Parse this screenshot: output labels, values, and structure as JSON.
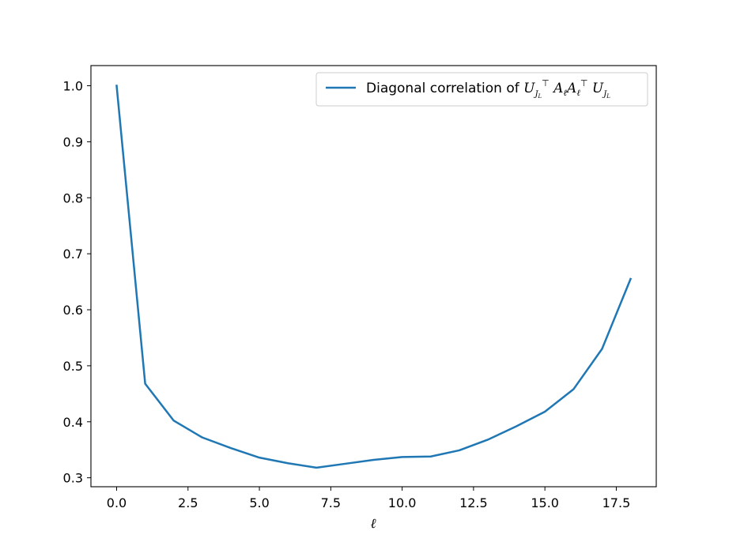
{
  "chart_data": {
    "type": "line",
    "xlabel": "ℓ",
    "ylabel": "",
    "title": "",
    "xlim": [
      -0.9,
      18.9
    ],
    "ylim": [
      0.284,
      1.036
    ],
    "xticks": [
      0.0,
      2.5,
      5.0,
      7.5,
      10.0,
      12.5,
      15.0,
      17.5
    ],
    "xtick_labels": [
      "0.0",
      "2.5",
      "5.0",
      "7.5",
      "10.0",
      "12.5",
      "15.0",
      "17.5"
    ],
    "yticks": [
      0.3,
      0.4,
      0.5,
      0.6,
      0.7,
      0.8,
      0.9,
      1.0
    ],
    "ytick_labels": [
      "0.3",
      "0.4",
      "0.5",
      "0.6",
      "0.7",
      "0.8",
      "0.9",
      "1.0"
    ],
    "grid": false,
    "legend_position": "top-right",
    "series": [
      {
        "name": "Diagonal correlation of U_{J_L}^⊤ A_ℓ A_ℓ^⊤ U_{J_L}",
        "color": "#1f77b4",
        "x": [
          0,
          1,
          2,
          3,
          4,
          5,
          6,
          7,
          8,
          9,
          10,
          11,
          12,
          13,
          14,
          15,
          16,
          17,
          18
        ],
        "y": [
          1.0,
          0.468,
          0.402,
          0.372,
          0.353,
          0.336,
          0.326,
          0.318,
          0.325,
          0.332,
          0.337,
          0.338,
          0.349,
          0.368,
          0.392,
          0.418,
          0.458,
          0.53,
          0.655
        ]
      }
    ]
  }
}
